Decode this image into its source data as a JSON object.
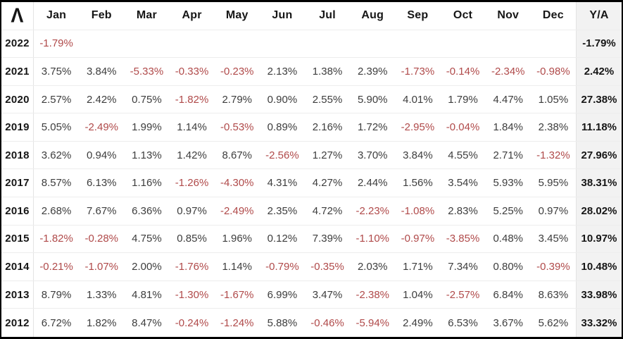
{
  "brand": {
    "logo_glyph": "Λ"
  },
  "colors": {
    "negative": "#b04a4a",
    "positive": "#3d3d3d",
    "emphasis": "#161616",
    "yearly_column_bg": "#f2f2f2",
    "row_divider": "#ededed",
    "column_divider": "#e3e3e3",
    "frame_border": "#000000"
  },
  "chart_data": {
    "type": "table",
    "columns": [
      "Jan",
      "Feb",
      "Mar",
      "Apr",
      "May",
      "Jun",
      "Jul",
      "Aug",
      "Sep",
      "Oct",
      "Nov",
      "Dec",
      "Y/A"
    ],
    "rows": [
      {
        "year": "2022",
        "values": [
          "-1.79%",
          "",
          "",
          "",
          "",
          "",
          "",
          "",
          "",
          "",
          "",
          ""
        ],
        "yearly": "-1.79%"
      },
      {
        "year": "2021",
        "values": [
          "3.75%",
          "3.84%",
          "-5.33%",
          "-0.33%",
          "-0.23%",
          "2.13%",
          "1.38%",
          "2.39%",
          "-1.73%",
          "-0.14%",
          "-2.34%",
          "-0.98%"
        ],
        "yearly": "2.42%"
      },
      {
        "year": "2020",
        "values": [
          "2.57%",
          "2.42%",
          "0.75%",
          "-1.82%",
          "2.79%",
          "0.90%",
          "2.55%",
          "5.90%",
          "4.01%",
          "1.79%",
          "4.47%",
          "1.05%"
        ],
        "yearly": "27.38%"
      },
      {
        "year": "2019",
        "values": [
          "5.05%",
          "-2.49%",
          "1.99%",
          "1.14%",
          "-0.53%",
          "0.89%",
          "2.16%",
          "1.72%",
          "-2.95%",
          "-0.04%",
          "1.84%",
          "2.38%"
        ],
        "yearly": "11.18%"
      },
      {
        "year": "2018",
        "values": [
          "3.62%",
          "0.94%",
          "1.13%",
          "1.42%",
          "8.67%",
          "-2.56%",
          "1.27%",
          "3.70%",
          "3.84%",
          "4.55%",
          "2.71%",
          "-1.32%"
        ],
        "yearly": "27.96%"
      },
      {
        "year": "2017",
        "values": [
          "8.57%",
          "6.13%",
          "1.16%",
          "-1.26%",
          "-4.30%",
          "4.31%",
          "4.27%",
          "2.44%",
          "1.56%",
          "3.54%",
          "5.93%",
          "5.95%"
        ],
        "yearly": "38.31%"
      },
      {
        "year": "2016",
        "values": [
          "2.68%",
          "7.67%",
          "6.36%",
          "0.97%",
          "-2.49%",
          "2.35%",
          "4.72%",
          "-2.23%",
          "-1.08%",
          "2.83%",
          "5.25%",
          "0.97%"
        ],
        "yearly": "28.02%"
      },
      {
        "year": "2015",
        "values": [
          "-1.82%",
          "-0.28%",
          "4.75%",
          "0.85%",
          "1.96%",
          "0.12%",
          "7.39%",
          "-1.10%",
          "-0.97%",
          "-3.85%",
          "0.48%",
          "3.45%"
        ],
        "yearly": "10.97%"
      },
      {
        "year": "2014",
        "values": [
          "-0.21%",
          "-1.07%",
          "2.00%",
          "-1.76%",
          "1.14%",
          "-0.79%",
          "-0.35%",
          "2.03%",
          "1.71%",
          "7.34%",
          "0.80%",
          "-0.39%"
        ],
        "yearly": "10.48%"
      },
      {
        "year": "2013",
        "values": [
          "8.79%",
          "1.33%",
          "4.81%",
          "-1.30%",
          "-1.67%",
          "6.99%",
          "3.47%",
          "-2.38%",
          "1.04%",
          "-2.57%",
          "6.84%",
          "8.63%"
        ],
        "yearly": "33.98%"
      },
      {
        "year": "2012",
        "values": [
          "6.72%",
          "1.82%",
          "8.47%",
          "-0.24%",
          "-1.24%",
          "5.88%",
          "-0.46%",
          "-5.94%",
          "2.49%",
          "6.53%",
          "3.67%",
          "5.62%"
        ],
        "yearly": "33.32%"
      }
    ]
  }
}
